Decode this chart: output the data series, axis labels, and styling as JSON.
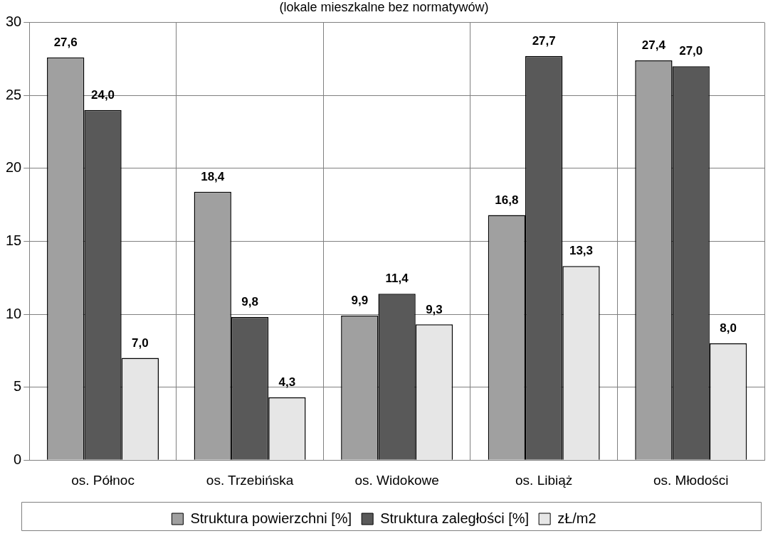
{
  "chart_data": {
    "type": "bar",
    "title": "(lokale mieszkalne bez normatywów)",
    "categories": [
      "os. Północ",
      "os. Trzebińska",
      "os. Widokowe",
      "os. Libiąż",
      "os. Młodości"
    ],
    "series": [
      {
        "name": "Struktura powierzchni [%]",
        "color": "#a0a0a0",
        "values": [
          27.6,
          18.4,
          9.9,
          16.8,
          27.4
        ],
        "value_labels": [
          "27,6",
          "18,4",
          "9,9",
          "16,8",
          "27,4"
        ]
      },
      {
        "name": "Struktura zaległości [%]",
        "color": "#595959",
        "values": [
          24.0,
          9.8,
          11.4,
          27.7,
          27.0
        ],
        "value_labels": [
          "24,0",
          "9,8",
          "11,4",
          "27,7",
          "27,0"
        ]
      },
      {
        "name": "zŁ/m2",
        "color": "#e6e6e6",
        "values": [
          7.0,
          4.3,
          9.3,
          13.3,
          8.0
        ],
        "value_labels": [
          "7,0",
          "4,3",
          "9,3",
          "13,3",
          "8,0"
        ]
      }
    ],
    "ylim": [
      0,
      30
    ],
    "yticks": [
      0,
      5,
      10,
      15,
      20,
      25,
      30
    ],
    "grid": true,
    "legend": "bottom"
  }
}
